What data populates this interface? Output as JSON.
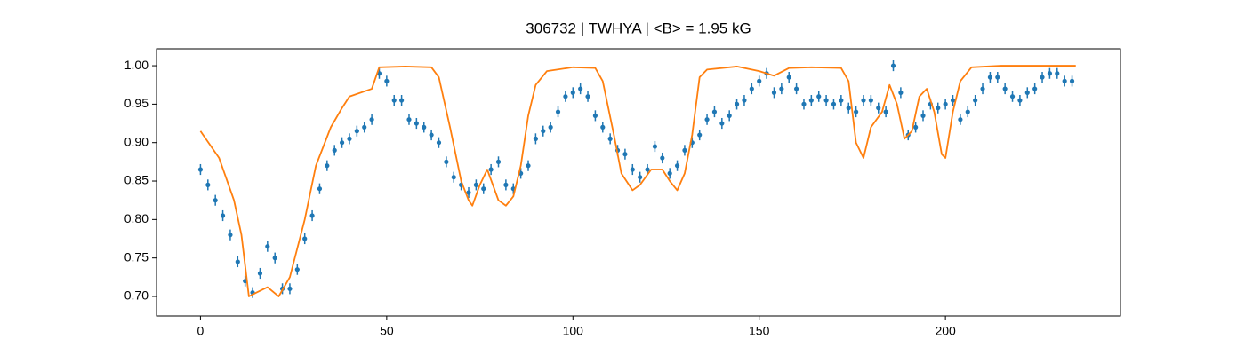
{
  "chart_data": {
    "type": "line",
    "title": "306732 | TWHYA | <B> = 1.95 kG",
    "xlim": [
      -11.8,
      247
    ],
    "ylim": [
      0.6746,
      1.022
    ],
    "xticks": [
      0,
      50,
      100,
      150,
      200
    ],
    "yticks": [
      {
        "value": 0.7,
        "label": "0.70"
      },
      0.75,
      {
        "value": 0.8,
        "label": "0.80"
      },
      0.85,
      {
        "value": 0.9,
        "label": "0.90"
      },
      0.95,
      {
        "value": 1,
        "label": "1.00"
      }
    ],
    "series": [
      {
        "type": "errorbar",
        "color": "#1f77b4",
        "yerr": 0.007,
        "x": [
          0,
          2,
          4,
          6,
          8,
          10,
          12,
          14,
          16,
          18,
          20,
          22,
          24,
          26,
          28,
          30,
          32,
          34,
          36,
          38,
          40,
          42,
          44,
          46,
          48,
          50,
          52,
          54,
          56,
          58,
          60,
          62,
          64,
          66,
          68,
          70,
          72,
          74,
          76,
          78,
          80,
          82,
          84,
          86,
          88,
          90,
          92,
          94,
          96,
          98,
          100,
          102,
          104,
          106,
          108,
          110,
          112,
          114,
          116,
          118,
          120,
          122,
          124,
          126,
          128,
          130,
          132,
          134,
          136,
          138,
          140,
          142,
          144,
          146,
          148,
          150,
          152,
          154,
          156,
          158,
          160,
          162,
          164,
          166,
          168,
          170,
          172,
          174,
          176,
          178,
          180,
          182,
          184,
          186,
          188,
          190,
          192,
          194,
          196,
          198,
          200,
          202,
          204,
          206,
          208,
          210,
          212,
          214,
          216,
          218,
          220,
          222,
          224,
          226,
          228,
          230,
          232,
          234
        ],
        "values": [
          0.865,
          0.845,
          0.825,
          0.805,
          0.78,
          0.745,
          0.72,
          0.705,
          0.73,
          0.765,
          0.75,
          0.71,
          0.71,
          0.735,
          0.775,
          0.805,
          0.84,
          0.87,
          0.89,
          0.9,
          0.905,
          0.915,
          0.92,
          0.93,
          0.99,
          0.98,
          0.955,
          0.955,
          0.93,
          0.925,
          0.92,
          0.91,
          0.9,
          0.875,
          0.855,
          0.845,
          0.835,
          0.845,
          0.84,
          0.865,
          0.875,
          0.845,
          0.84,
          0.86,
          0.87,
          0.905,
          0.915,
          0.92,
          0.94,
          0.96,
          0.965,
          0.97,
          0.96,
          0.935,
          0.92,
          0.905,
          0.89,
          0.885,
          0.865,
          0.855,
          0.865,
          0.895,
          0.88,
          0.86,
          0.87,
          0.89,
          0.9,
          0.91,
          0.93,
          0.94,
          0.925,
          0.935,
          0.95,
          0.955,
          0.97,
          0.98,
          0.99,
          0.965,
          0.97,
          0.985,
          0.97,
          0.95,
          0.955,
          0.96,
          0.955,
          0.95,
          0.955,
          0.945,
          0.94,
          0.955,
          0.955,
          0.945,
          0.94,
          1.0,
          0.965,
          0.91,
          0.92,
          0.935,
          0.95,
          0.945,
          0.95,
          0.955,
          0.93,
          0.94,
          0.955,
          0.97,
          0.985,
          0.985,
          0.97,
          0.96,
          0.955,
          0.965,
          0.97,
          0.985,
          0.99,
          0.99,
          0.98,
          0.98
        ]
      },
      {
        "color": "#ff7f0e",
        "x": [
          0,
          5,
          9,
          11,
          12,
          13,
          15,
          18,
          21,
          24,
          28,
          31,
          35,
          38,
          40,
          46,
          48,
          55,
          62,
          64,
          67,
          70,
          72,
          73,
          75,
          77,
          80,
          82,
          84,
          86,
          88,
          90,
          93,
          100,
          106,
          108,
          111,
          113,
          116,
          118,
          121,
          124,
          126,
          128,
          130,
          132,
          134,
          136,
          144,
          150,
          154,
          158,
          164,
          172,
          174,
          176,
          178,
          180,
          183,
          185,
          187,
          189,
          191,
          193,
          195,
          197,
          199,
          200,
          202,
          204,
          207,
          215,
          235
        ],
        "values": [
          0.915,
          0.88,
          0.825,
          0.78,
          0.74,
          0.7,
          0.705,
          0.712,
          0.7,
          0.725,
          0.8,
          0.87,
          0.92,
          0.945,
          0.96,
          0.97,
          0.998,
          0.999,
          0.998,
          0.985,
          0.92,
          0.85,
          0.825,
          0.818,
          0.845,
          0.865,
          0.825,
          0.818,
          0.83,
          0.87,
          0.935,
          0.975,
          0.993,
          0.998,
          0.997,
          0.98,
          0.91,
          0.86,
          0.838,
          0.845,
          0.865,
          0.865,
          0.85,
          0.838,
          0.86,
          0.91,
          0.985,
          0.995,
          0.999,
          0.993,
          0.987,
          0.997,
          0.998,
          0.997,
          0.98,
          0.9,
          0.88,
          0.92,
          0.94,
          0.975,
          0.95,
          0.905,
          0.915,
          0.96,
          0.97,
          0.94,
          0.885,
          0.88,
          0.94,
          0.98,
          0.998,
          1.0,
          1.0
        ]
      }
    ]
  }
}
